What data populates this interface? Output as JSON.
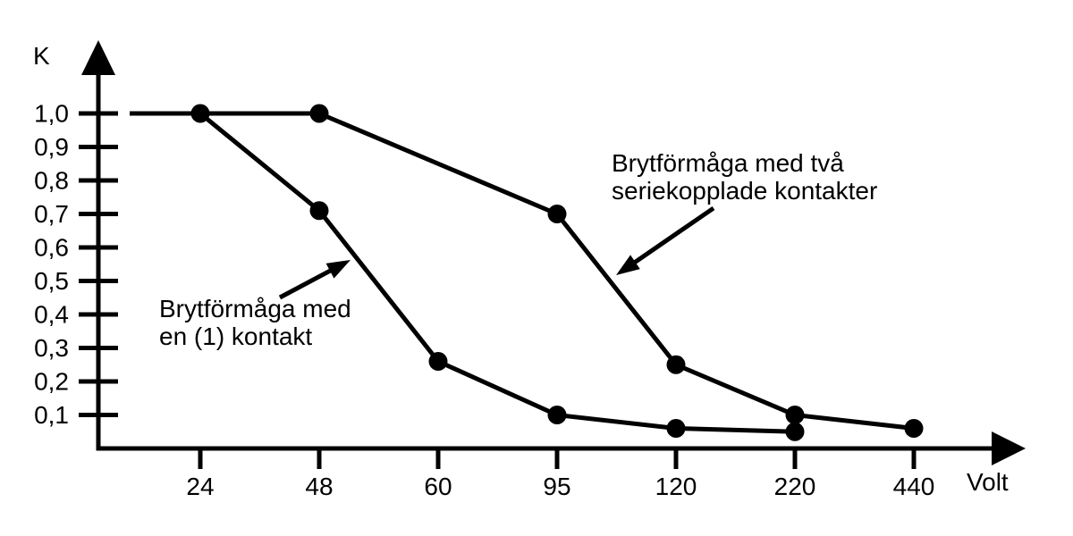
{
  "figure": {
    "background_color": "#ffffff",
    "ink_color": "#000000"
  },
  "chart_data": {
    "type": "line",
    "title": "",
    "xlabel": "Volt",
    "ylabel": "K",
    "x_scale": "categorical",
    "grid": false,
    "legend": "none — series identified by arrow annotations",
    "x_tick_labels": [
      "24",
      "48",
      "60",
      "95",
      "120",
      "220",
      "440"
    ],
    "y_tick_labels": [
      "1,0",
      "0,9",
      "0,8",
      "0,7",
      "0,6",
      "0,5",
      "0,4",
      "0,3",
      "0,2",
      "0,1"
    ],
    "y_tick_values": [
      1.0,
      0.9,
      0.8,
      0.7,
      0.6,
      0.5,
      0.4,
      0.3,
      0.2,
      0.1
    ],
    "ylim": [
      0,
      1.08
    ],
    "series": [
      {
        "name": "Brytförmåga med en (1) kontakt",
        "x": [
          "24",
          "48",
          "60",
          "95",
          "120",
          "220"
        ],
        "k_values": [
          1.0,
          0.71,
          0.26,
          0.1,
          0.06,
          0.05
        ]
      },
      {
        "name": "Brytförmåga med två seriekopplade kontakter",
        "x": [
          "48",
          "95",
          "120",
          "220",
          "440"
        ],
        "k_values": [
          1.0,
          0.7,
          0.25,
          0.1,
          0.06
        ],
        "flat_lead_in_at_k": 1.0
      }
    ],
    "annotations": [
      {
        "lines": [
          "Brytförmåga med",
          "en (1) kontakt"
        ],
        "arrow_points_to": "single-contact curve"
      },
      {
        "lines": [
          "Brytförmåga med två",
          "seriekopplade kontakter"
        ],
        "arrow_points_to": "two-contacts curve"
      }
    ]
  }
}
